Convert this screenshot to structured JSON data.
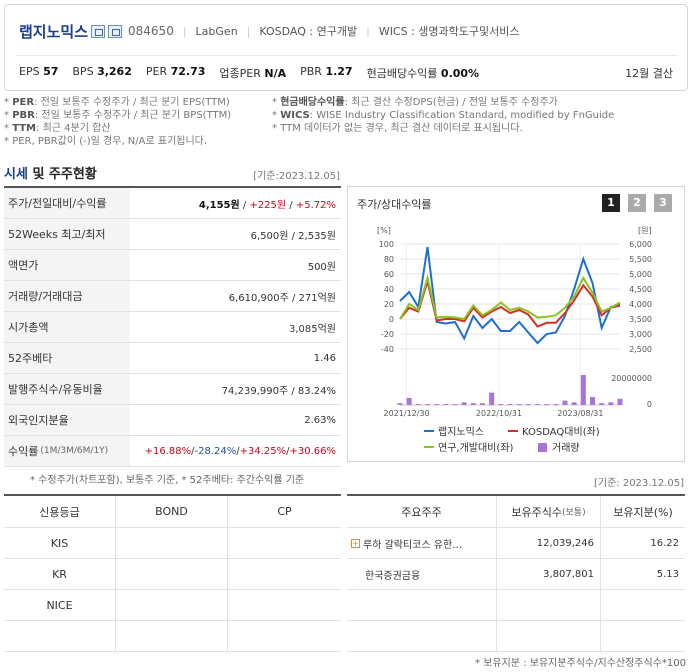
{
  "header": {
    "company_name": "랩지노믹스",
    "code": "084650",
    "eng_name": "LabGen",
    "market": "KOSDAQ : 연구개발",
    "wics": "WICS : 생명과학도구및서비스",
    "fiscal": "12월 결산",
    "metrics": [
      {
        "label": "EPS",
        "value": "57"
      },
      {
        "label": "BPS",
        "value": "3,262"
      },
      {
        "label": "PER",
        "value": "72.73"
      },
      {
        "label": "업종PER",
        "value": "N/A"
      },
      {
        "label": "PBR",
        "value": "1.27"
      },
      {
        "label": "현금배당수익률",
        "value": "0.00%"
      }
    ]
  },
  "notes_left": [
    {
      "key": "PER",
      "text": ": 전일 보통주 수정주가 / 최근 분기 EPS(TTM)"
    },
    {
      "key": "PBR",
      "text": ": 전일 보통주 수정주가 / 최근 분기 BPS(TTM)"
    },
    {
      "key": "TTM",
      "text": ": 최근 4분기 합산"
    },
    {
      "key": "",
      "text": "PER, PBR값이 (-)일 경우, N/A로 표기됩니다."
    }
  ],
  "notes_right": [
    {
      "key": "현금배당수익률",
      "text": ": 최근 결산 수정DPS(현금) / 전일 보통주 수정주가"
    },
    {
      "key": "WICS",
      "text": ": WISE Industry Classification Standard, modified by FnGuide"
    },
    {
      "key": "",
      "text": "TTM 데이터가 없는 경우, 최근 결산 데이터로 표시됩니다."
    }
  ],
  "section": {
    "title_hl": "시세",
    "title_rest": " 및 주주현황",
    "date": "[기준:2023.12.05]"
  },
  "quote_rows": [
    {
      "label": "주가/전일대비/수익률",
      "value": "4,155원",
      "change": "+225원",
      "rate": "+5.72%"
    },
    {
      "label": "52Weeks 최고/최저",
      "value": "6,500원 / 2,535원"
    },
    {
      "label": "액면가",
      "value": "500원"
    },
    {
      "label": "거래량/거래대금",
      "value": "6,610,900주 / 271억원"
    },
    {
      "label": "시가총액",
      "value": "3,085억원"
    },
    {
      "label": "52주베타",
      "value": "1.46"
    },
    {
      "label": "발행주식수/유동비율",
      "value": "74,239,990주 / 83.24%"
    },
    {
      "label": "외국인지분율",
      "value": "2.63%"
    }
  ],
  "return_row": {
    "label": "수익률",
    "periods": "(1M/3M/6M/1Y)",
    "r1m": "+16.88%",
    "r3m": "-28.24%",
    "r6m": "+34.25%",
    "r1y": "+30.66%"
  },
  "quote_footnote": "* 수정주가(차트포함), 보통주 기준, * 52주베타: 주간수익률 기준",
  "chart": {
    "title": "주가/상대수익률",
    "pages": [
      "1",
      "2",
      "3"
    ],
    "left_unit": "[%]",
    "right_unit": "[원]",
    "legend": [
      {
        "name": "랩지노믹스",
        "color": "#1f6fd1"
      },
      {
        "name": "KOSDAQ대비(좌)",
        "color": "#d0302a"
      },
      {
        "name": "연구,개발대비(좌)",
        "color": "#8dc21f"
      },
      {
        "name": "거래량",
        "color": "#a974d4"
      }
    ]
  },
  "chart_data": {
    "type": "line",
    "x_ticks": [
      "2021/12/30",
      "2022/10/31",
      "2023/08/31"
    ],
    "left_axis": {
      "label": "[%]",
      "ticks": [
        "100",
        "80",
        "60",
        "40",
        "20",
        "0",
        "-20",
        "-40"
      ],
      "ylim": [
        -40,
        100
      ]
    },
    "right_axis": {
      "label": "[원]",
      "ticks": [
        "6,000",
        "5,500",
        "5,000",
        "4,500",
        "4,000",
        "3,500",
        "3,000",
        "2,500"
      ],
      "ylim": [
        2500,
        6000
      ]
    },
    "volume_axis": {
      "ticks": [
        "20000000",
        "0"
      ]
    },
    "series": [
      {
        "name": "랩지노믹스",
        "color": "#1f6fd1",
        "axis": "right",
        "values": [
          4100,
          4400,
          3900,
          5900,
          3400,
          3350,
          3400,
          2850,
          3600,
          3200,
          3500,
          3100,
          3100,
          3400,
          3050,
          2700,
          3000,
          3050,
          3600,
          4500,
          5500,
          4700,
          3200,
          3900,
          4000
        ]
      },
      {
        "name": "KOSDAQ대비(좌)",
        "color": "#d0302a",
        "axis": "left",
        "values": [
          0,
          15,
          10,
          50,
          -2,
          0,
          0,
          -3,
          15,
          2,
          10,
          16,
          8,
          12,
          6,
          -10,
          -5,
          -5,
          8,
          25,
          45,
          30,
          5,
          15,
          18
        ]
      },
      {
        "name": "연구,개발대비(좌)",
        "color": "#8dc21f",
        "axis": "left",
        "values": [
          0,
          20,
          12,
          55,
          2,
          3,
          2,
          0,
          18,
          5,
          12,
          22,
          12,
          15,
          10,
          2,
          3,
          5,
          15,
          30,
          55,
          35,
          10,
          15,
          22
        ]
      },
      {
        "name": "거래량",
        "color": "#a974d4",
        "axis": "volume",
        "values": [
          2,
          8,
          1,
          1,
          1,
          1,
          1,
          3,
          2,
          2,
          14,
          1,
          1,
          1,
          1,
          1,
          1,
          1,
          5,
          3,
          34,
          9,
          2,
          3,
          7
        ]
      }
    ]
  },
  "credit": {
    "headers": [
      "신용등급",
      "BOND",
      "CP"
    ],
    "rows": [
      "KIS",
      "KR",
      "NICE",
      ""
    ]
  },
  "holders": {
    "date": "[기준: 2023.12.05]",
    "headers": [
      "주요주주",
      "보유주식수",
      "(보통)",
      "보유지분(%)"
    ],
    "rows": [
      {
        "name": "루하 갈락티코스 유한…",
        "shares": "12,039,246",
        "pct": "16.22",
        "expand": true
      },
      {
        "name": "한국증권금융",
        "shares": "3,807,801",
        "pct": "5.13",
        "expand": false
      },
      {
        "name": "",
        "shares": "",
        "pct": "",
        "expand": false
      },
      {
        "name": "",
        "shares": "",
        "pct": "",
        "expand": false
      }
    ],
    "footnote": "* 보유지분 : 보유지분주식수/지수산정주식수*100"
  }
}
